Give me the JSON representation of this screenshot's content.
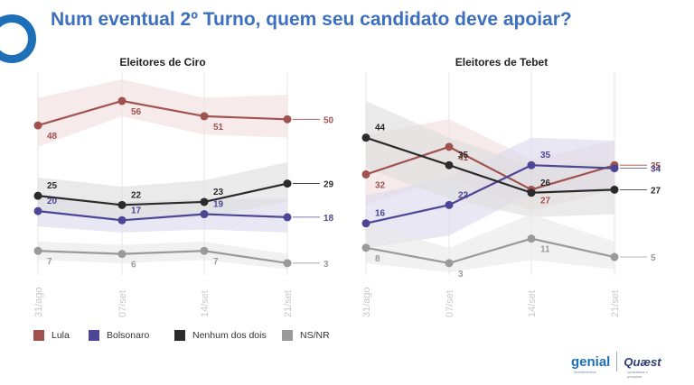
{
  "title": "Num eventual 2º Turno, quem seu candidato deve apoiar?",
  "colors": {
    "Lula": "#a0524f",
    "Bolsonaro": "#4d4596",
    "Nenhum dos dois": "#2b2b2b",
    "NS/NR": "#9a9a9a"
  },
  "band_colors": {
    "Lula": "#f1dede",
    "Bolsonaro": "#dcdaec",
    "Nenhum dos dois": "#dedede",
    "NS/NR": "#e9e9e9"
  },
  "legend": [
    "Lula",
    "Bolsonaro",
    "Nenhum dos dois",
    "NS/NR"
  ],
  "brand": {
    "genial": "genial",
    "genial_sub": "investimentos",
    "quaest": "Quæst",
    "quaest_sub": "consultoria e pesquisa"
  },
  "chart_data": [
    {
      "type": "line",
      "title": "Eleitores de Ciro",
      "categories": [
        "31/ago",
        "07/set",
        "14/set",
        "21/set"
      ],
      "ylim": [
        0,
        66
      ],
      "series": [
        {
          "name": "Lula",
          "values": [
            48,
            56,
            51,
            50
          ],
          "band": [
            [
              41,
              57
            ],
            [
              51,
              63
            ],
            [
              45,
              57
            ],
            [
              44,
              58
            ]
          ]
        },
        {
          "name": "Bolsonaro",
          "values": [
            20,
            17,
            19,
            18
          ],
          "band": [
            [
              15,
              25
            ],
            [
              13,
              23
            ],
            [
              14,
              24
            ],
            [
              13,
              24
            ]
          ]
        },
        {
          "name": "Nenhum dos dois",
          "values": [
            25,
            22,
            23,
            29
          ],
          "band": [
            [
              20,
              31
            ],
            [
              17,
              28
            ],
            [
              18,
              30
            ],
            [
              23,
              36
            ]
          ]
        },
        {
          "name": "NS/NR",
          "values": [
            7,
            6,
            7,
            3
          ],
          "band": [
            [
              4,
              10
            ],
            [
              3,
              9
            ],
            [
              4,
              10
            ],
            [
              1,
              6
            ]
          ]
        }
      ]
    },
    {
      "type": "line",
      "title": "Eleitores de Tebet",
      "categories": [
        "31/ago",
        "07/set",
        "14/set",
        "21/set"
      ],
      "ylim": [
        0,
        66
      ],
      "series": [
        {
          "name": "Lula",
          "values": [
            32,
            41,
            27,
            35
          ],
          "band": [
            [
              22,
              45
            ],
            [
              31,
              50
            ],
            [
              20,
              37
            ],
            [
              27,
              43
            ]
          ]
        },
        {
          "name": "Bolsonaro",
          "values": [
            16,
            22,
            35,
            34
          ],
          "band": [
            [
              8,
              25
            ],
            [
              12,
              31
            ],
            [
              26,
              44
            ],
            [
              26,
              43
            ]
          ]
        },
        {
          "name": "Nenhum dos dois",
          "values": [
            44,
            35,
            26,
            27
          ],
          "band": [
            [
              34,
              56
            ],
            [
              24,
              44
            ],
            [
              18,
              35
            ],
            [
              19,
              36
            ]
          ]
        },
        {
          "name": "NS/NR",
          "values": [
            8,
            3,
            11,
            5
          ],
          "band": [
            [
              3,
              16
            ],
            [
              0,
              8
            ],
            [
              4,
              19
            ],
            [
              1,
              10
            ]
          ]
        }
      ]
    }
  ]
}
